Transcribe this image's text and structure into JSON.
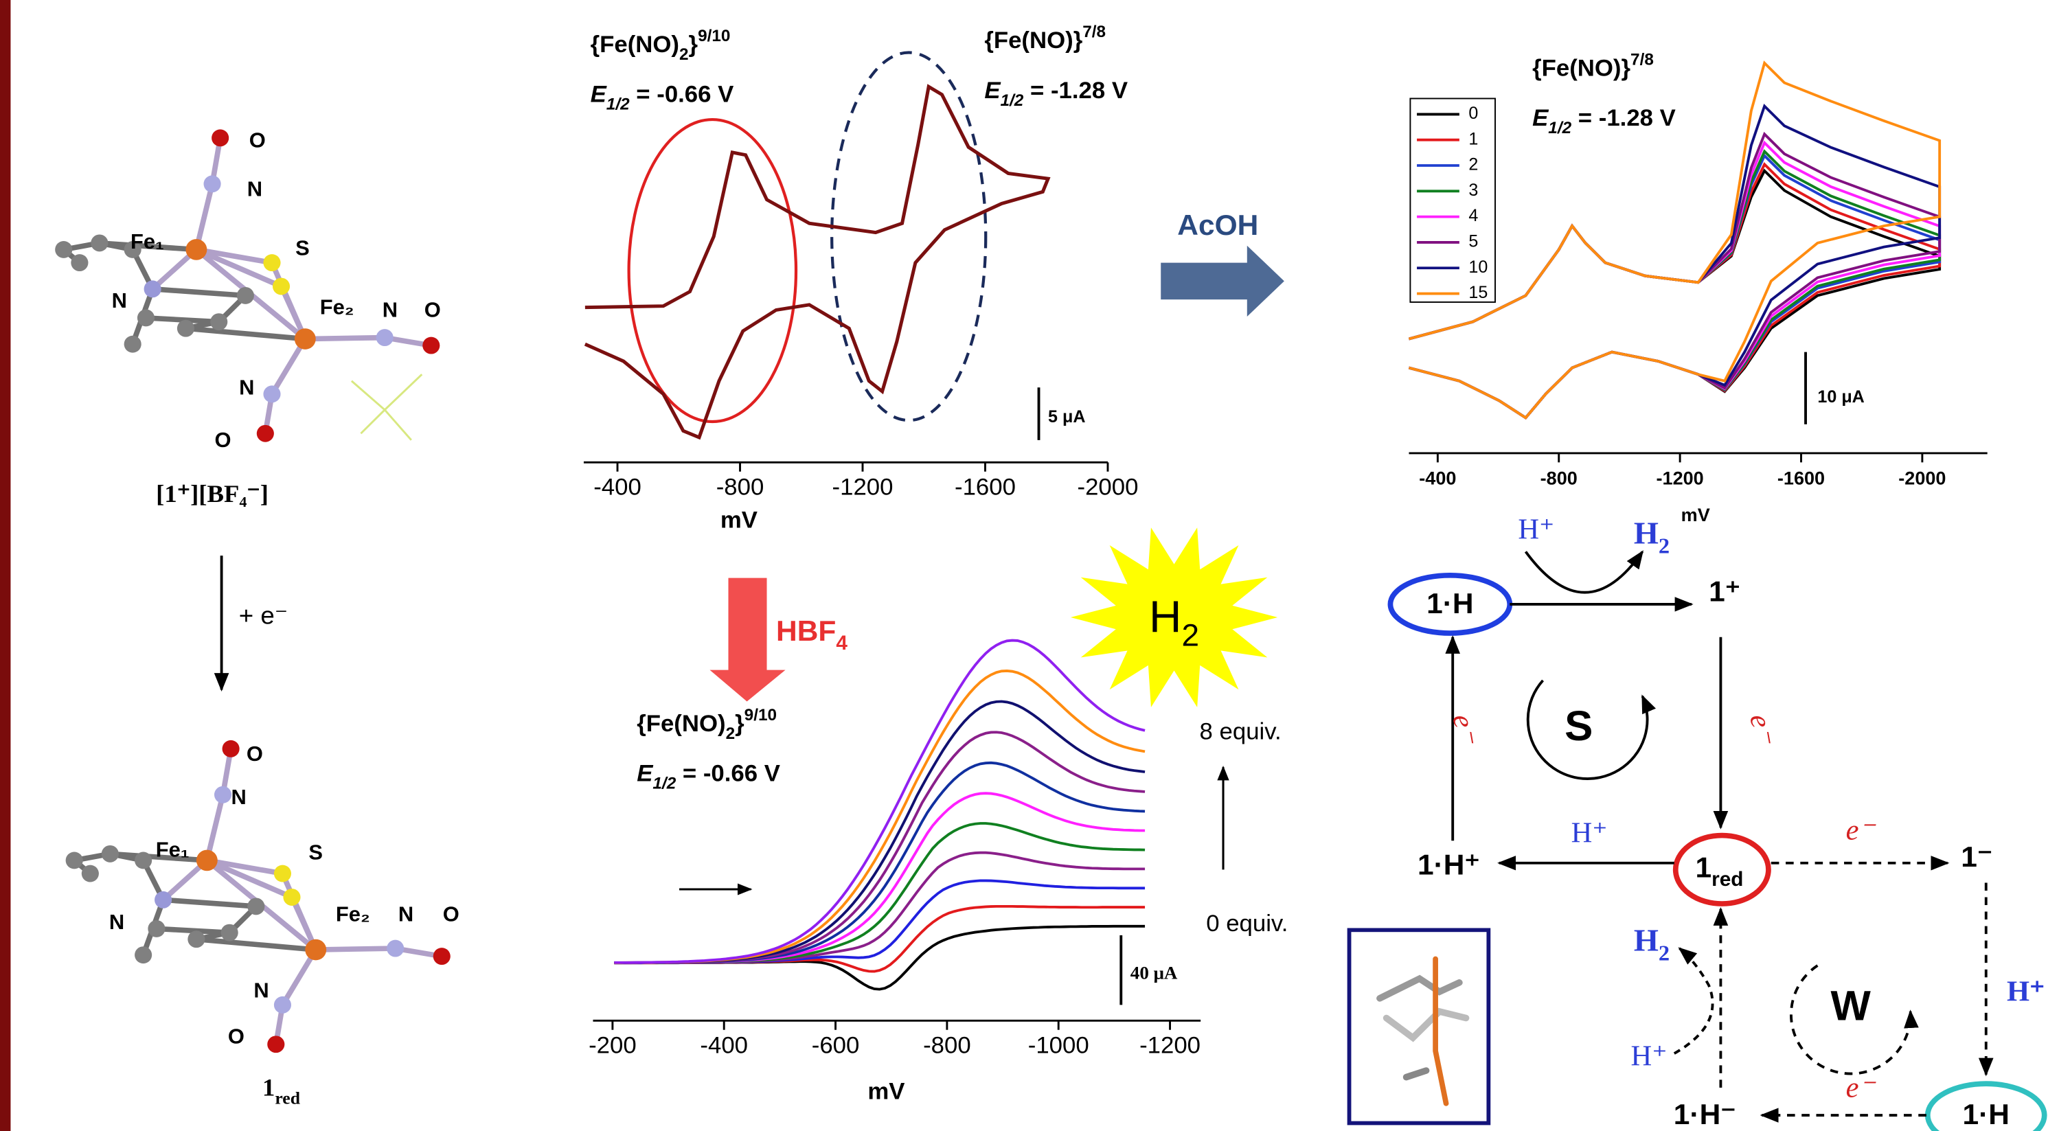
{
  "molecule_oxidized": {
    "atom_labels": [
      "O",
      "N",
      "Fe₁",
      "S",
      "Fe₂",
      "N",
      "O",
      "N",
      "O",
      "N"
    ],
    "caption": "[1⁺][BF₄⁻]"
  },
  "reduction_step": "+ e⁻",
  "molecule_reduced": {
    "atom_labels": [
      "O",
      "N",
      "Fe₁",
      "S",
      "Fe₂",
      "N",
      "O",
      "N",
      "O",
      "N"
    ],
    "caption": [
      "1",
      "red"
    ]
  },
  "cv_top_left": {
    "annotations": [
      {
        "species": [
          "{Fe(NO)",
          "2",
          "}",
          "9/10"
        ],
        "potential": [
          "E",
          "1/2",
          " = -0.66 V"
        ]
      },
      {
        "species": [
          "{Fe(NO)}",
          "7/8"
        ],
        "potential": [
          "E",
          "1/2",
          " = -1.28 V"
        ]
      }
    ],
    "scale_bar": "5 μA",
    "x_axis": {
      "label": "mV",
      "xlim": [
        -290,
        -2000
      ],
      "xticks": [
        -400,
        -800,
        -1200,
        -1600,
        -2000
      ]
    }
  },
  "reagent_arrow": "AcOH",
  "cv_top_right": {
    "annotation": {
      "species": [
        "{Fe(NO)}",
        "7/8"
      ],
      "potential": [
        "E",
        "1/2",
        " = -1.28 V"
      ]
    },
    "legend": [
      {
        "label": "0",
        "color": "#000000"
      },
      {
        "label": "1",
        "color": "#e31a1c"
      },
      {
        "label": "2",
        "color": "#2040d0"
      },
      {
        "label": "3",
        "color": "#108020"
      },
      {
        "label": "4",
        "color": "#ff20ff"
      },
      {
        "label": "5",
        "color": "#801080"
      },
      {
        "label": "10",
        "color": "#101080"
      },
      {
        "label": "15",
        "color": "#ff8c10"
      }
    ],
    "scale_bar": "10 μA",
    "x_axis": {
      "label": "mV",
      "xlim": [
        -305,
        -2215
      ],
      "xticks": [
        -400,
        -800,
        -1200,
        -1600,
        -2000
      ]
    }
  },
  "cv_bottom": {
    "reagent": [
      "HBF",
      "4"
    ],
    "product": [
      "H",
      "2"
    ],
    "annotation": {
      "species": [
        "{Fe(NO)",
        "2",
        "}",
        "9/10"
      ],
      "potential": [
        "E",
        "1/2",
        " = -0.66 V"
      ]
    },
    "range_top": "8 equiv.",
    "range_bottom": "0 equiv.",
    "scale_bar": "40 μA",
    "curve_colors": [
      "#000000",
      "#e31a1c",
      "#2020e0",
      "#8a1f8a",
      "#108020",
      "#ff20ff",
      "#1030a0",
      "#8a1f8a",
      "#101070",
      "#ff8c10",
      "#9020f0"
    ],
    "x_axis": {
      "label": "mV",
      "xlim": [
        -165,
        -1255
      ],
      "xticks": [
        -200,
        -400,
        -600,
        -800,
        -1000,
        -1200
      ]
    }
  },
  "scheme": {
    "nodes": {
      "top_left": "1·H",
      "top_right": "1⁺",
      "mid_left": "1·H⁺",
      "center": [
        "1",
        "red"
      ],
      "mid_right": "1⁻",
      "bottom_left": "1·H⁻",
      "bottom_right": "1·H"
    },
    "labels": {
      "h_plus_top": "H⁺",
      "h2_top": [
        "H",
        "2"
      ],
      "e_right": "e⁻",
      "e_left": "e⁻",
      "h_plus_mid": "H⁺",
      "e_mid": "e⁻",
      "h_plus_right": "H⁺",
      "e_bottom": "e⁻",
      "h2_bottom": [
        "H",
        "2"
      ],
      "h_plus_bottom": "H⁺"
    },
    "cycles": [
      "S",
      "W"
    ]
  }
}
